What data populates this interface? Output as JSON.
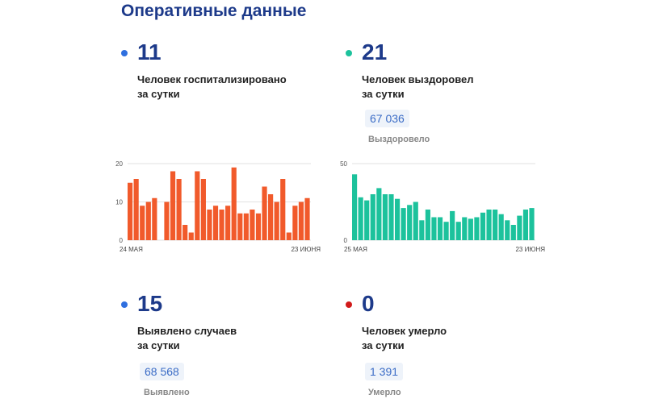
{
  "header": {
    "title": "Оперативные данные"
  },
  "stats": {
    "hospitalized": {
      "value": "11",
      "label_line1": "Человек госпитализировано",
      "label_line2": "за сутки",
      "dot_color": "#2f6fdf"
    },
    "recovered": {
      "value": "21",
      "label_line1": "Человек выздоровел",
      "label_line2": "за сутки",
      "total": "67 036",
      "total_label": "Выздоровело",
      "dot_color": "#1cc29c"
    },
    "cases": {
      "value": "15",
      "label_line1": "Выявлено случаев",
      "label_line2": "за сутки",
      "total": "68 568",
      "total_label": "Выявлено",
      "dot_color": "#2f6fdf"
    },
    "deaths": {
      "value": "0",
      "label_line1": "Человек умерло",
      "label_line2": "за сутки",
      "total": "1 391",
      "total_label": "Умерло",
      "dot_color": "#d11a1a"
    }
  },
  "chart_data": [
    {
      "type": "bar",
      "color": "#f15a2b",
      "yticks": [
        0,
        10,
        20
      ],
      "ylim": [
        0,
        20
      ],
      "x_start_label": "24 МАЯ",
      "x_end_label": "23 ИЮНЯ",
      "values": [
        15,
        16,
        9,
        10,
        11,
        0,
        10,
        18,
        16,
        4,
        2,
        18,
        16,
        8,
        9,
        8,
        9,
        19,
        7,
        7,
        8,
        7,
        14,
        12,
        10,
        16,
        2,
        9,
        10,
        11
      ]
    },
    {
      "type": "bar",
      "color": "#1cc29c",
      "yticks": [
        0,
        50
      ],
      "ylim": [
        0,
        50
      ],
      "x_start_label": "25 МАЯ",
      "x_end_label": "23 ИЮНЯ",
      "values": [
        43,
        28,
        26,
        30,
        34,
        30,
        30,
        27,
        21,
        23,
        25,
        13,
        20,
        15,
        15,
        12,
        19,
        12,
        15,
        14,
        15,
        18,
        20,
        20,
        17,
        13,
        10,
        16,
        20,
        21
      ]
    }
  ]
}
